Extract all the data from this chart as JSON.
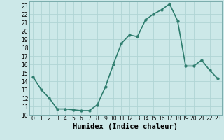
{
  "x": [
    0,
    1,
    2,
    3,
    4,
    5,
    6,
    7,
    8,
    9,
    10,
    11,
    12,
    13,
    14,
    15,
    16,
    17,
    18,
    19,
    20,
    21,
    22,
    23
  ],
  "y": [
    14.5,
    13.0,
    12.0,
    10.7,
    10.7,
    10.6,
    10.5,
    10.5,
    11.2,
    13.3,
    16.0,
    18.5,
    19.5,
    19.3,
    21.3,
    22.0,
    22.5,
    23.2,
    21.2,
    15.8,
    15.8,
    16.5,
    15.3,
    14.3
  ],
  "line_color": "#2e7d6e",
  "marker_color": "#2e7d6e",
  "bg_color": "#cce8e8",
  "grid_color": "#b0d4d4",
  "xlabel": "Humidex (Indice chaleur)",
  "xlabel_fontsize": 7.5,
  "xlim": [
    -0.5,
    23.5
  ],
  "ylim": [
    10,
    23.5
  ],
  "yticks": [
    10,
    11,
    12,
    13,
    14,
    15,
    16,
    17,
    18,
    19,
    20,
    21,
    22,
    23
  ],
  "xticks": [
    0,
    1,
    2,
    3,
    4,
    5,
    6,
    7,
    8,
    9,
    10,
    11,
    12,
    13,
    14,
    15,
    16,
    17,
    18,
    19,
    20,
    21,
    22,
    23
  ],
  "tick_fontsize": 5.5,
  "line_width": 1.2,
  "marker_size": 2.5
}
